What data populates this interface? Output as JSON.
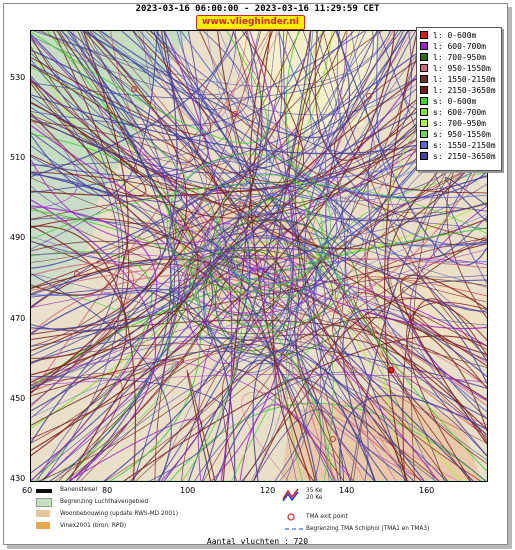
{
  "header": {
    "title": "2023-03-16 06:00:00 - 2023-03-16 11:29:59 CET",
    "badge": "www.vlieghinder.nl"
  },
  "axes": {
    "x_ticks": [
      "60",
      "80",
      "100",
      "120",
      "140",
      "160"
    ],
    "y_ticks": [
      "530",
      "510",
      "490",
      "470",
      "450",
      "430"
    ]
  },
  "legend": {
    "items": [
      {
        "label": "l:  0-600m",
        "color": "#d71a1a"
      },
      {
        "label": "l:  600-700m",
        "color": "#9a22c8"
      },
      {
        "label": "l:  700-950m",
        "color": "#2f6b12"
      },
      {
        "label": "l:  950-1550m",
        "color": "#d3677a"
      },
      {
        "label": "l:  1550-2150m",
        "color": "#6d3024"
      },
      {
        "label": "l:  2150-3650m",
        "color": "#7a1d1b"
      },
      {
        "label": "s:  0-600m",
        "color": "#3bd12f"
      },
      {
        "label": "s:  600-700m",
        "color": "#7be22c"
      },
      {
        "label": "s:  700-950m",
        "color": "#b5ef3c"
      },
      {
        "label": "s:  950-1550m",
        "color": "#6fd25b"
      },
      {
        "label": "s:  1550-2150m",
        "color": "#5d6bd0"
      },
      {
        "label": "s:  2150-3650m",
        "color": "#42409f"
      }
    ]
  },
  "bottom_legend": {
    "runway": "Banenstelsel",
    "airport_boundary": "Begrenzing Luchthavengebied",
    "housing": "Woonbebouwing (update RWS-MD 2001)",
    "vinex": "Vinex2001 (bron: RPD)",
    "ke_35": "35 Ke",
    "ke_20": "20 Ke",
    "tma_exit": "TMA exit point",
    "tma_boundary": "Begrenzing TMA Schiphol  (TMA1 en TMA3)"
  },
  "footer": {
    "count_text": "Aantal vluchten : 720"
  }
}
